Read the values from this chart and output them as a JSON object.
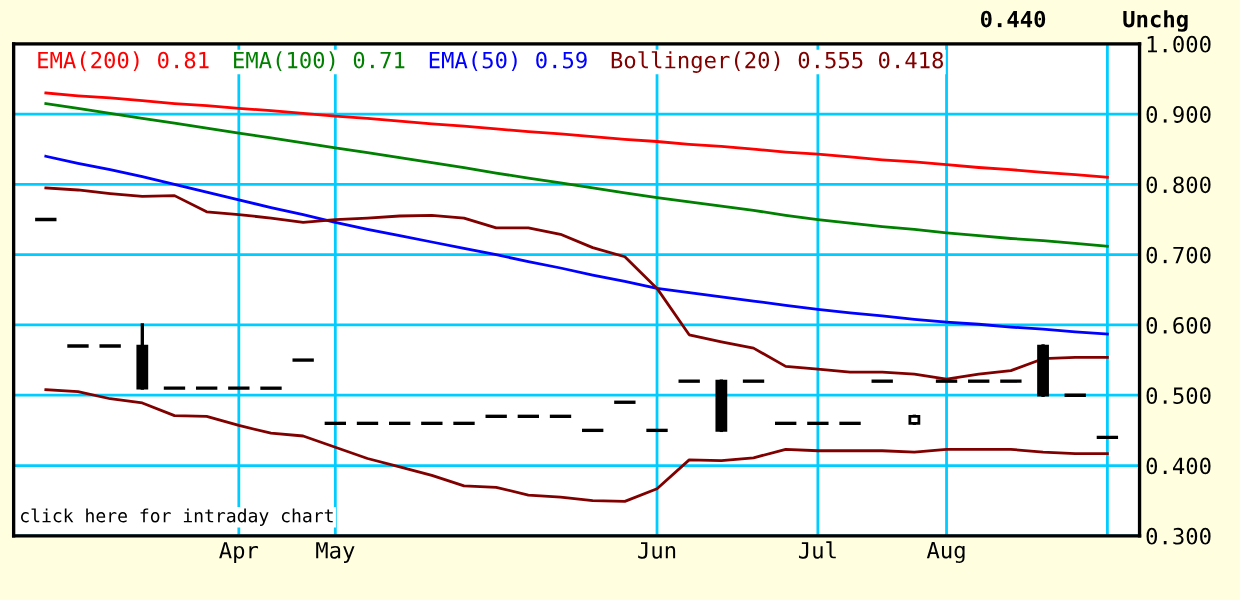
{
  "chart_data": {
    "type": "candlestick",
    "categories": [
      null,
      null,
      null,
      null,
      null,
      null,
      "Apr",
      null,
      null,
      "May",
      null,
      null,
      null,
      null,
      null,
      null,
      null,
      null,
      null,
      "Jun",
      null,
      null,
      null,
      null,
      "Jul",
      null,
      null,
      null,
      "Aug",
      null,
      null,
      null,
      null,
      null
    ],
    "ohlc": [
      [
        0.75,
        0.75,
        0.75,
        0.75
      ],
      [
        0.57,
        0.57,
        0.57,
        0.57
      ],
      [
        0.57,
        0.57,
        0.57,
        0.57
      ],
      [
        0.57,
        0.6,
        0.51,
        0.51
      ],
      [
        0.51,
        0.51,
        0.51,
        0.51
      ],
      [
        0.51,
        0.51,
        0.51,
        0.51
      ],
      [
        0.51,
        0.51,
        0.51,
        0.51
      ],
      [
        0.51,
        0.51,
        0.51,
        0.51
      ],
      [
        0.55,
        0.55,
        0.55,
        0.55
      ],
      [
        0.46,
        0.46,
        0.46,
        0.46
      ],
      [
        0.46,
        0.46,
        0.46,
        0.46
      ],
      [
        0.46,
        0.46,
        0.46,
        0.46
      ],
      [
        0.46,
        0.46,
        0.46,
        0.46
      ],
      [
        0.46,
        0.46,
        0.46,
        0.46
      ],
      [
        0.47,
        0.47,
        0.47,
        0.47
      ],
      [
        0.47,
        0.47,
        0.47,
        0.47
      ],
      [
        0.47,
        0.47,
        0.47,
        0.47
      ],
      [
        0.45,
        0.45,
        0.45,
        0.45
      ],
      [
        0.49,
        0.49,
        0.49,
        0.49
      ],
      [
        0.45,
        0.45,
        0.45,
        0.45
      ],
      [
        0.52,
        0.52,
        0.52,
        0.52
      ],
      [
        0.52,
        0.52,
        0.45,
        0.45
      ],
      [
        0.52,
        0.52,
        0.52,
        0.52
      ],
      [
        0.46,
        0.46,
        0.46,
        0.46
      ],
      [
        0.46,
        0.46,
        0.46,
        0.46
      ],
      [
        0.46,
        0.46,
        0.46,
        0.46
      ],
      [
        0.52,
        0.52,
        0.52,
        0.52
      ],
      [
        0.46,
        0.47,
        0.46,
        0.47
      ],
      [
        0.52,
        0.52,
        0.52,
        0.52
      ],
      [
        0.52,
        0.52,
        0.52,
        0.52
      ],
      [
        0.52,
        0.52,
        0.52,
        0.52
      ],
      [
        0.57,
        0.57,
        0.5,
        0.5
      ],
      [
        0.5,
        0.5,
        0.5,
        0.5
      ],
      [
        0.44,
        0.44,
        0.44,
        0.44
      ]
    ],
    "color": "#000000",
    "series": [
      {
        "type": "line",
        "name": "EMA(200) 0.81",
        "color": "#ff0000",
        "values": [
          0.93,
          0.926,
          0.923,
          0.919,
          0.915,
          0.912,
          0.908,
          0.905,
          0.901,
          0.897,
          0.894,
          0.89,
          0.886,
          0.883,
          0.879,
          0.875,
          0.872,
          0.868,
          0.864,
          0.861,
          0.857,
          0.854,
          0.85,
          0.846,
          0.843,
          0.839,
          0.835,
          0.832,
          0.828,
          0.824,
          0.821,
          0.817,
          0.814,
          0.81
        ]
      },
      {
        "type": "line",
        "name": "EMA(100) 0.71",
        "color": "#008000",
        "values": [
          0.915,
          0.908,
          0.901,
          0.894,
          0.887,
          0.88,
          0.873,
          0.866,
          0.859,
          0.852,
          0.845,
          0.838,
          0.831,
          0.824,
          0.816,
          0.809,
          0.802,
          0.795,
          0.788,
          0.781,
          0.775,
          0.769,
          0.763,
          0.756,
          0.75,
          0.745,
          0.74,
          0.736,
          0.731,
          0.727,
          0.723,
          0.72,
          0.716,
          0.712
        ]
      },
      {
        "type": "line",
        "name": "EMA(50) 0.59",
        "color": "#0000ff",
        "values": [
          0.84,
          0.83,
          0.821,
          0.811,
          0.8,
          0.789,
          0.778,
          0.767,
          0.757,
          0.746,
          0.736,
          0.727,
          0.718,
          0.709,
          0.7,
          0.69,
          0.681,
          0.671,
          0.662,
          0.652,
          0.646,
          0.64,
          0.634,
          0.628,
          0.622,
          0.617,
          0.613,
          0.608,
          0.604,
          0.601,
          0.597,
          0.594,
          0.59,
          0.587
        ]
      },
      {
        "type": "line",
        "name": "Bollinger(20) 0.555 0.418",
        "color": "#800000",
        "values": [
          0.795,
          0.792,
          0.787,
          0.783,
          0.784,
          0.761,
          0.757,
          0.752,
          0.746,
          0.75,
          0.752,
          0.755,
          0.756,
          0.752,
          0.738,
          0.738,
          0.729,
          0.71,
          0.697,
          0.652,
          0.586,
          0.576,
          0.567,
          0.541,
          0.537,
          0.533,
          0.533,
          0.53,
          0.523,
          0.53,
          0.535,
          0.552,
          0.554,
          0.554
        ]
      },
      {
        "type": "line",
        "color": "#800000",
        "values": [
          0.508,
          0.505,
          0.495,
          0.489,
          0.471,
          0.47,
          0.457,
          0.446,
          0.442,
          0.426,
          0.41,
          0.398,
          0.386,
          0.371,
          0.369,
          0.358,
          0.355,
          0.35,
          0.349,
          0.367,
          0.408,
          0.407,
          0.411,
          0.423,
          0.421,
          0.421,
          0.421,
          0.419,
          0.423,
          0.423,
          0.423,
          0.419,
          0.417,
          0.417
        ]
      }
    ],
    "ylim": [
      0.3,
      1.0
    ],
    "yticks": [
      {
        "value": 0.3,
        "label": "0.300"
      },
      {
        "value": 0.4,
        "label": "0.400"
      },
      {
        "value": 0.5,
        "label": "0.500"
      },
      {
        "value": 0.6,
        "label": "0.600"
      },
      {
        "value": 0.7,
        "label": "0.700"
      },
      {
        "value": 0.8,
        "label": "0.800"
      },
      {
        "value": 0.9,
        "label": "0.900"
      },
      {
        "value": 1.0,
        "label": "1.000"
      }
    ],
    "grid": true,
    "legend": "top",
    "annotations": [
      "0.440",
      "Unchg",
      "click here for intraday chart"
    ]
  }
}
